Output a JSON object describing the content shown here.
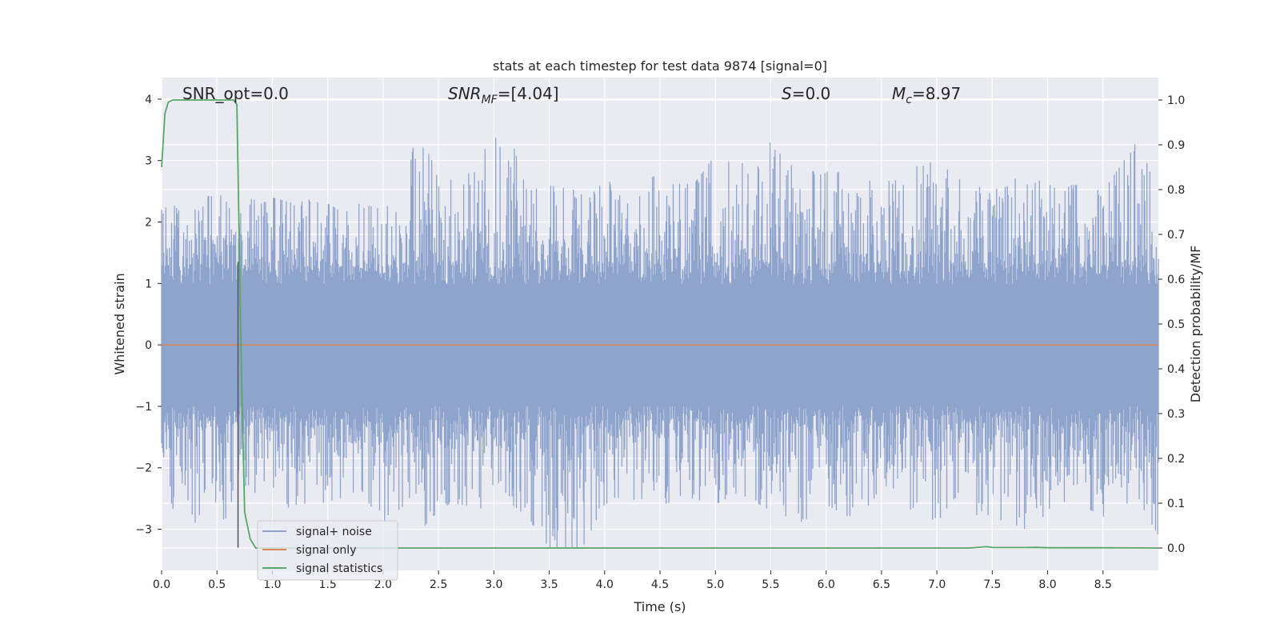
{
  "chart_data": {
    "type": "line",
    "title": "stats at each timestep for test data 9874 [signal=0]",
    "xlabel": "Time (s)",
    "ylabel": "Whitened strain",
    "y2label": "Detection probability/MF",
    "xlim": [
      0,
      9.0
    ],
    "ylim": [
      -3.67,
      4.35
    ],
    "y2lim": [
      -0.05,
      1.05
    ],
    "xticks": [
      0.0,
      0.5,
      1.0,
      1.5,
      2.0,
      2.5,
      3.0,
      3.5,
      4.0,
      4.5,
      5.0,
      5.5,
      6.0,
      6.5,
      7.0,
      7.5,
      8.0,
      8.5
    ],
    "xtick_labels": [
      "0.0",
      "0.5",
      "1.0",
      "1.5",
      "2.0",
      "2.5",
      "3.0",
      "3.5",
      "4.0",
      "4.5",
      "5.0",
      "5.5",
      "6.0",
      "6.5",
      "7.0",
      "7.5",
      "8.0",
      "8.5"
    ],
    "yticks": [
      -3,
      -2,
      -1,
      0,
      1,
      2,
      3,
      4
    ],
    "ytick_labels": [
      "−3",
      "−2",
      "−1",
      "0",
      "1",
      "2",
      "3",
      "4"
    ],
    "y2ticks": [
      0.0,
      0.1,
      0.2,
      0.3,
      0.4,
      0.5,
      0.6,
      0.7,
      0.8,
      0.9,
      1.0
    ],
    "y2tick_labels": [
      "0.0",
      "0.1",
      "0.2",
      "0.3",
      "0.4",
      "0.5",
      "0.6",
      "0.7",
      "0.8",
      "0.9",
      "1.0"
    ],
    "grid": true,
    "legend": {
      "placement": "lower-left",
      "entries": [
        "signal+ noise",
        "signal only",
        "signal statistics"
      ]
    },
    "annotations": [
      {
        "id": "snr-opt",
        "text": "SNR_opt=0.0"
      },
      {
        "id": "snr-mf",
        "text": "=[4.04]",
        "prefix": "SNR",
        "sub": "MF"
      },
      {
        "id": "s-stat",
        "text": "=0.0",
        "prefix": "S",
        "sub": ""
      },
      {
        "id": "mc",
        "text": "=8.97",
        "prefix": "M",
        "sub": "c"
      }
    ],
    "marker_line": {
      "x": 0.69,
      "y": [
        -3.3,
        1.35
      ]
    },
    "series": [
      {
        "name": "signal+ noise",
        "axis": "left",
        "color": "#8fa4cc",
        "envelope": {
          "x": [
            0.0,
            0.1,
            0.2,
            0.3,
            0.4,
            0.5,
            0.6,
            0.7,
            0.8,
            0.9,
            1.0,
            1.2,
            1.4,
            1.6,
            1.8,
            2.0,
            2.2,
            2.3,
            2.5,
            2.7,
            3.0,
            3.1,
            3.3,
            3.5,
            3.8,
            4.0,
            4.2,
            4.5,
            4.8,
            5.0,
            5.2,
            5.5,
            5.8,
            6.0,
            6.2,
            6.5,
            6.8,
            7.0,
            7.2,
            7.5,
            7.8,
            8.0,
            8.3,
            8.5,
            8.8,
            9.0
          ],
          "max": [
            2.2,
            2.3,
            2.1,
            2.2,
            2.4,
            2.5,
            2.3,
            2.1,
            2.4,
            2.3,
            2.4,
            2.3,
            2.4,
            2.2,
            2.3,
            2.2,
            2.5,
            3.5,
            2.8,
            2.6,
            3.4,
            3.7,
            2.5,
            2.6,
            2.5,
            2.7,
            2.5,
            2.8,
            2.6,
            3.1,
            2.9,
            3.3,
            2.7,
            3.0,
            2.8,
            2.6,
            2.9,
            3.0,
            2.7,
            2.5,
            2.8,
            2.6,
            2.6,
            2.5,
            3.3,
            2.6
          ],
          "min": [
            -1.6,
            -2.8,
            -2.3,
            -2.9,
            -2.7,
            -2.9,
            -2.8,
            -2.0,
            -2.5,
            -2.4,
            -2.3,
            -2.8,
            -2.6,
            -2.5,
            -2.4,
            -2.9,
            -2.6,
            -3.1,
            -2.7,
            -2.6,
            -2.7,
            -2.5,
            -2.8,
            -3.3,
            -3.3,
            -2.6,
            -2.5,
            -2.6,
            -2.5,
            -2.6,
            -2.4,
            -2.7,
            -2.9,
            -2.6,
            -2.8,
            -2.5,
            -3.0,
            -2.8,
            -2.9,
            -2.8,
            -3.0,
            -2.9,
            -2.6,
            -2.8,
            -2.5,
            -3.1
          ]
        }
      },
      {
        "name": "signal only",
        "axis": "left",
        "color": "#dd8452",
        "x": [
          0.0,
          9.0
        ],
        "y": [
          0.0,
          0.0
        ]
      },
      {
        "name": "signal statistics",
        "axis": "right",
        "color": "#55a868",
        "x": [
          0.0,
          0.03,
          0.06,
          0.1,
          0.15,
          0.2,
          0.3,
          0.4,
          0.5,
          0.6,
          0.65,
          0.68,
          0.7,
          0.72,
          0.75,
          0.8,
          0.85,
          1.0,
          2.0,
          3.0,
          4.0,
          5.0,
          6.0,
          7.0,
          7.3,
          7.4,
          7.45,
          7.5,
          7.6,
          7.8,
          7.9,
          8.0,
          8.5,
          9.0
        ],
        "y": [
          0.85,
          0.97,
          0.995,
          1.0,
          1.0,
          1.0,
          1.0,
          1.0,
          1.0,
          1.0,
          1.0,
          0.99,
          0.7,
          0.4,
          0.08,
          0.02,
          0.0,
          0.0,
          0.0,
          0.0,
          0.0,
          0.0,
          0.0,
          0.0,
          0.0,
          0.002,
          0.003,
          0.001,
          0.001,
          0.001,
          0.0015,
          0.0005,
          0.0005,
          0.0
        ]
      }
    ]
  }
}
